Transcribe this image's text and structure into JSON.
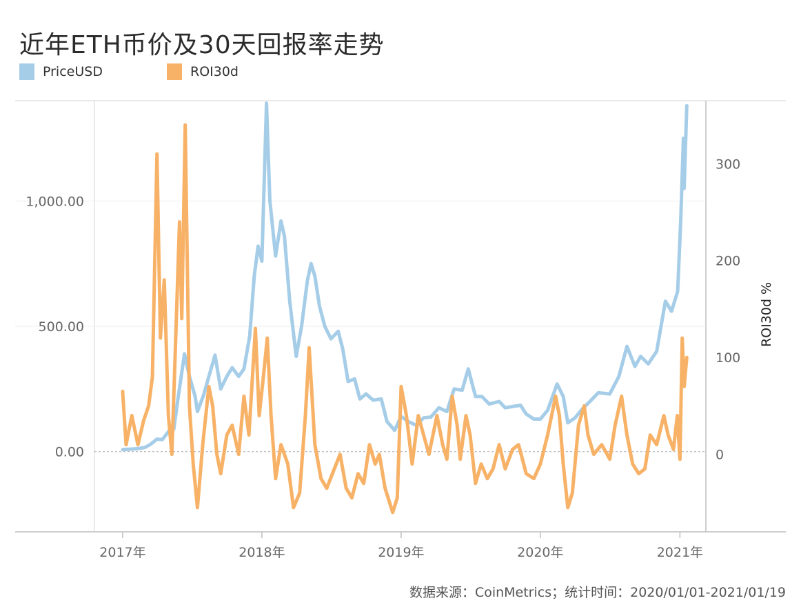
{
  "chart_data": {
    "type": "line",
    "title": "近年ETH币价及30天回报率走势",
    "source": "数据来源：CoinMetrics；统计时间：2020/01/01-2021/01/19",
    "legend_placement": "top-left",
    "x_ticks": [
      "2017年",
      "2018年",
      "2019年",
      "2020年",
      "2021年"
    ],
    "x_range": [
      "2016-10-19",
      "2021-03-10"
    ],
    "y_left": {
      "label": "",
      "range": [
        -320,
        1400
      ],
      "ticks": [
        "1,000.00",
        "500.00",
        "0.00"
      ],
      "tick_values": [
        1000,
        500,
        0
      ]
    },
    "y_right": {
      "label": "ROI30d %",
      "range": [
        -80,
        365
      ],
      "ticks": [
        "300",
        "200",
        "100",
        "0"
      ],
      "tick_values": [
        300,
        200,
        100,
        0
      ]
    },
    "grid": true,
    "series": [
      {
        "name": "PriceUSD",
        "axis": "left",
        "color": "#a6cde8",
        "points": [
          [
            "2017-01-01",
            8
          ],
          [
            "2017-02-01",
            11
          ],
          [
            "2017-02-15",
            13
          ],
          [
            "2017-03-01",
            17
          ],
          [
            "2017-03-15",
            29
          ],
          [
            "2017-04-01",
            50
          ],
          [
            "2017-04-15",
            48
          ],
          [
            "2017-05-01",
            80
          ],
          [
            "2017-05-15",
            90
          ],
          [
            "2017-05-25",
            200
          ],
          [
            "2017-06-12",
            390
          ],
          [
            "2017-06-25",
            300
          ],
          [
            "2017-07-10",
            220
          ],
          [
            "2017-07-16",
            160
          ],
          [
            "2017-08-01",
            225
          ],
          [
            "2017-08-15",
            300
          ],
          [
            "2017-08-31",
            385
          ],
          [
            "2017-09-15",
            250
          ],
          [
            "2017-10-01",
            300
          ],
          [
            "2017-10-15",
            335
          ],
          [
            "2017-11-01",
            300
          ],
          [
            "2017-11-15",
            330
          ],
          [
            "2017-11-30",
            460
          ],
          [
            "2017-12-12",
            700
          ],
          [
            "2017-12-22",
            820
          ],
          [
            "2018-01-01",
            760
          ],
          [
            "2018-01-13",
            1390
          ],
          [
            "2018-01-22",
            1000
          ],
          [
            "2018-02-06",
            780
          ],
          [
            "2018-02-20",
            920
          ],
          [
            "2018-03-01",
            860
          ],
          [
            "2018-03-15",
            600
          ],
          [
            "2018-04-01",
            380
          ],
          [
            "2018-04-15",
            500
          ],
          [
            "2018-04-30",
            680
          ],
          [
            "2018-05-10",
            750
          ],
          [
            "2018-05-20",
            700
          ],
          [
            "2018-06-01",
            580
          ],
          [
            "2018-06-15",
            500
          ],
          [
            "2018-07-01",
            450
          ],
          [
            "2018-07-20",
            480
          ],
          [
            "2018-08-01",
            410
          ],
          [
            "2018-08-15",
            280
          ],
          [
            "2018-09-01",
            290
          ],
          [
            "2018-09-15",
            210
          ],
          [
            "2018-10-01",
            230
          ],
          [
            "2018-10-20",
            205
          ],
          [
            "2018-11-10",
            210
          ],
          [
            "2018-11-25",
            120
          ],
          [
            "2018-12-15",
            85
          ],
          [
            "2019-01-01",
            140
          ],
          [
            "2019-01-20",
            120
          ],
          [
            "2019-02-10",
            105
          ],
          [
            "2019-03-01",
            135
          ],
          [
            "2019-03-20",
            138
          ],
          [
            "2019-04-10",
            175
          ],
          [
            "2019-05-01",
            160
          ],
          [
            "2019-05-20",
            250
          ],
          [
            "2019-06-10",
            245
          ],
          [
            "2019-06-26",
            330
          ],
          [
            "2019-07-15",
            220
          ],
          [
            "2019-08-01",
            220
          ],
          [
            "2019-08-20",
            190
          ],
          [
            "2019-09-15",
            200
          ],
          [
            "2019-10-01",
            175
          ],
          [
            "2019-10-20",
            180
          ],
          [
            "2019-11-10",
            185
          ],
          [
            "2019-11-25",
            150
          ],
          [
            "2019-12-15",
            130
          ],
          [
            "2020-01-01",
            130
          ],
          [
            "2020-01-20",
            165
          ],
          [
            "2020-02-14",
            270
          ],
          [
            "2020-03-01",
            220
          ],
          [
            "2020-03-13",
            115
          ],
          [
            "2020-04-01",
            135
          ],
          [
            "2020-04-20",
            170
          ],
          [
            "2020-05-10",
            200
          ],
          [
            "2020-06-01",
            235
          ],
          [
            "2020-07-01",
            230
          ],
          [
            "2020-07-25",
            300
          ],
          [
            "2020-08-15",
            420
          ],
          [
            "2020-09-05",
            340
          ],
          [
            "2020-09-20",
            380
          ],
          [
            "2020-10-10",
            350
          ],
          [
            "2020-11-01",
            400
          ],
          [
            "2020-11-24",
            600
          ],
          [
            "2020-12-10",
            560
          ],
          [
            "2020-12-26",
            640
          ],
          [
            "2021-01-03",
            920
          ],
          [
            "2021-01-10",
            1250
          ],
          [
            "2021-01-12",
            1050
          ],
          [
            "2021-01-19",
            1380
          ]
        ]
      },
      {
        "name": "ROI30d",
        "axis": "right",
        "color": "#f7b267",
        "points": [
          [
            "2017-01-01",
            65
          ],
          [
            "2017-01-10",
            10
          ],
          [
            "2017-01-25",
            40
          ],
          [
            "2017-02-10",
            10
          ],
          [
            "2017-02-25",
            35
          ],
          [
            "2017-03-10",
            50
          ],
          [
            "2017-03-20",
            80
          ],
          [
            "2017-04-01",
            310
          ],
          [
            "2017-04-10",
            120
          ],
          [
            "2017-04-20",
            180
          ],
          [
            "2017-05-01",
            40
          ],
          [
            "2017-05-10",
            0
          ],
          [
            "2017-05-20",
            120
          ],
          [
            "2017-05-30",
            240
          ],
          [
            "2017-06-05",
            140
          ],
          [
            "2017-06-14",
            340
          ],
          [
            "2017-06-25",
            50
          ],
          [
            "2017-07-05",
            -10
          ],
          [
            "2017-07-16",
            -55
          ],
          [
            "2017-07-30",
            10
          ],
          [
            "2017-08-15",
            70
          ],
          [
            "2017-08-25",
            50
          ],
          [
            "2017-09-05",
            0
          ],
          [
            "2017-09-15",
            -20
          ],
          [
            "2017-10-01",
            20
          ],
          [
            "2017-10-15",
            30
          ],
          [
            "2017-11-01",
            0
          ],
          [
            "2017-11-15",
            60
          ],
          [
            "2017-11-28",
            20
          ],
          [
            "2017-12-15",
            130
          ],
          [
            "2017-12-25",
            40
          ],
          [
            "2018-01-05",
            80
          ],
          [
            "2018-01-15",
            120
          ],
          [
            "2018-01-25",
            40
          ],
          [
            "2018-02-06",
            -25
          ],
          [
            "2018-02-20",
            10
          ],
          [
            "2018-03-10",
            -10
          ],
          [
            "2018-03-25",
            -55
          ],
          [
            "2018-04-10",
            -40
          ],
          [
            "2018-04-25",
            40
          ],
          [
            "2018-05-05",
            110
          ],
          [
            "2018-05-20",
            10
          ],
          [
            "2018-06-05",
            -25
          ],
          [
            "2018-06-20",
            -35
          ],
          [
            "2018-07-10",
            -15
          ],
          [
            "2018-07-25",
            0
          ],
          [
            "2018-08-10",
            -35
          ],
          [
            "2018-08-25",
            -45
          ],
          [
            "2018-09-10",
            -20
          ],
          [
            "2018-09-25",
            -30
          ],
          [
            "2018-10-10",
            10
          ],
          [
            "2018-10-25",
            -10
          ],
          [
            "2018-11-05",
            0
          ],
          [
            "2018-11-20",
            -35
          ],
          [
            "2018-12-10",
            -60
          ],
          [
            "2018-12-22",
            -45
          ],
          [
            "2019-01-01",
            70
          ],
          [
            "2019-01-15",
            40
          ],
          [
            "2019-01-30",
            -10
          ],
          [
            "2019-02-15",
            40
          ],
          [
            "2019-03-01",
            20
          ],
          [
            "2019-03-15",
            0
          ],
          [
            "2019-04-05",
            40
          ],
          [
            "2019-04-20",
            10
          ],
          [
            "2019-05-01",
            -5
          ],
          [
            "2019-05-15",
            60
          ],
          [
            "2019-05-28",
            30
          ],
          [
            "2019-06-05",
            -5
          ],
          [
            "2019-06-20",
            40
          ],
          [
            "2019-07-01",
            20
          ],
          [
            "2019-07-15",
            -30
          ],
          [
            "2019-07-30",
            -10
          ],
          [
            "2019-08-15",
            -25
          ],
          [
            "2019-08-30",
            -15
          ],
          [
            "2019-09-15",
            10
          ],
          [
            "2019-10-01",
            -15
          ],
          [
            "2019-10-20",
            5
          ],
          [
            "2019-11-05",
            10
          ],
          [
            "2019-11-25",
            -20
          ],
          [
            "2019-12-15",
            -25
          ],
          [
            "2020-01-01",
            -10
          ],
          [
            "2020-01-20",
            20
          ],
          [
            "2020-02-10",
            60
          ],
          [
            "2020-02-20",
            40
          ],
          [
            "2020-03-01",
            -10
          ],
          [
            "2020-03-13",
            -55
          ],
          [
            "2020-03-25",
            -40
          ],
          [
            "2020-04-10",
            30
          ],
          [
            "2020-04-25",
            50
          ],
          [
            "2020-05-05",
            20
          ],
          [
            "2020-05-20",
            0
          ],
          [
            "2020-06-10",
            10
          ],
          [
            "2020-07-01",
            -5
          ],
          [
            "2020-07-15",
            30
          ],
          [
            "2020-08-01",
            60
          ],
          [
            "2020-08-15",
            20
          ],
          [
            "2020-08-30",
            -10
          ],
          [
            "2020-09-15",
            -20
          ],
          [
            "2020-10-01",
            -15
          ],
          [
            "2020-10-15",
            20
          ],
          [
            "2020-11-01",
            10
          ],
          [
            "2020-11-20",
            40
          ],
          [
            "2020-12-01",
            20
          ],
          [
            "2020-12-15",
            5
          ],
          [
            "2020-12-25",
            40
          ],
          [
            "2021-01-01",
            -5
          ],
          [
            "2021-01-07",
            120
          ],
          [
            "2021-01-12",
            70
          ],
          [
            "2021-01-19",
            100
          ]
        ]
      }
    ]
  }
}
